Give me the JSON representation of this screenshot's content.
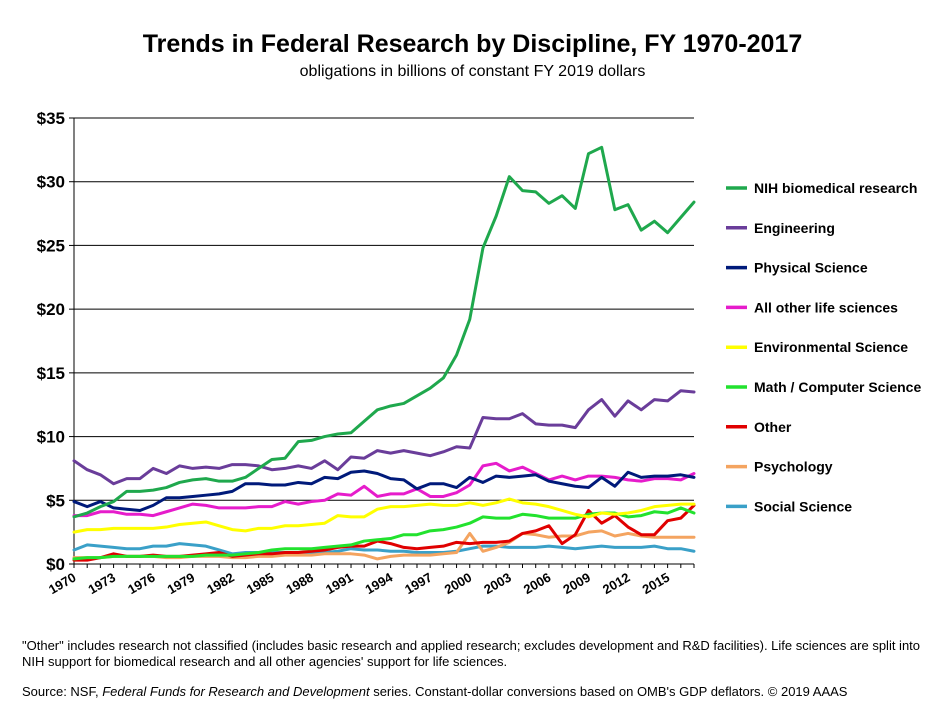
{
  "title": "Trends in Federal Research by Discipline, FY 1970-2017",
  "subtitle": "obligations in billions of constant FY 2019 dollars",
  "note": "\"Other\" includes research not classified (includes basic research and applied research; excludes development and R&D facilities). Life sciences are split into NIH  support for biomedical research and all other agencies' support for life sciences.",
  "source": {
    "prefix": "Source: NSF, ",
    "italic": "Federal Funds for Research and Development",
    "suffix": " series. Constant-dollar conversions based on OMB's GDP deflators. © 2019 AAAS"
  },
  "chart_data": {
    "type": "line",
    "title": "Trends in Federal Research by Discipline, FY 1970-2017",
    "subtitle": "obligations in billions of constant FY 2019 dollars",
    "xlabel": "",
    "ylabel": "",
    "xlim": [
      1970,
      2017
    ],
    "ylim": [
      0,
      35
    ],
    "y_ticks": [
      0,
      5,
      10,
      15,
      20,
      25,
      30,
      35
    ],
    "y_tick_labels": [
      "$0",
      "$5",
      "$10",
      "$15",
      "$20",
      "$25",
      "$30",
      "$35"
    ],
    "x_ticks": [
      1970,
      1973,
      1976,
      1979,
      1982,
      1985,
      1988,
      1991,
      1994,
      1997,
      2000,
      2003,
      2006,
      2009,
      2012,
      2015
    ],
    "x_tick_labels": [
      "1970",
      "1973",
      "1976",
      "1979",
      "1982",
      "1985",
      "1988",
      "1991",
      "1994",
      "1997",
      "2000",
      "2003",
      "2006",
      "2009",
      "2012",
      "2015"
    ],
    "grid": "horizontal",
    "legend_position": "right",
    "x": [
      1970,
      1971,
      1972,
      1973,
      1974,
      1975,
      1976,
      1977,
      1978,
      1979,
      1980,
      1981,
      1982,
      1983,
      1984,
      1985,
      1986,
      1987,
      1988,
      1989,
      1990,
      1991,
      1992,
      1993,
      1994,
      1995,
      1996,
      1997,
      1998,
      1999,
      2000,
      2001,
      2002,
      2003,
      2004,
      2005,
      2006,
      2007,
      2008,
      2009,
      2010,
      2011,
      2012,
      2013,
      2014,
      2015,
      2016,
      2017
    ],
    "series": [
      {
        "name": "NIH biomedical research",
        "color": "#1fa84d",
        "values": [
          3.7,
          4.0,
          4.5,
          4.9,
          5.7,
          5.7,
          5.8,
          6.0,
          6.4,
          6.6,
          6.7,
          6.5,
          6.5,
          6.8,
          7.5,
          8.2,
          8.3,
          9.6,
          9.7,
          10.0,
          10.2,
          10.3,
          11.2,
          12.1,
          12.4,
          12.6,
          13.2,
          13.8,
          14.6,
          16.4,
          19.2,
          24.8,
          27.3,
          30.4,
          29.3,
          29.2,
          28.3,
          28.9,
          27.9,
          32.2,
          32.7,
          27.8,
          28.2,
          26.2,
          26.9,
          26.0,
          27.2,
          28.4
        ]
      },
      {
        "name": "Engineering",
        "color": "#6a3d9a",
        "values": [
          8.1,
          7.4,
          7.0,
          6.3,
          6.7,
          6.7,
          7.5,
          7.1,
          7.7,
          7.5,
          7.6,
          7.5,
          7.8,
          7.8,
          7.7,
          7.4,
          7.5,
          7.7,
          7.5,
          8.1,
          7.4,
          8.4,
          8.3,
          8.9,
          8.7,
          8.9,
          8.7,
          8.5,
          8.8,
          9.2,
          9.1,
          11.5,
          11.4,
          11.4,
          11.8,
          11.0,
          10.9,
          10.9,
          10.7,
          12.1,
          12.9,
          11.6,
          12.8,
          12.1,
          12.9,
          12.8,
          13.6,
          13.5
        ]
      },
      {
        "name": "Physical Science",
        "color": "#001a7a",
        "values": [
          4.9,
          4.5,
          4.9,
          4.4,
          4.3,
          4.2,
          4.6,
          5.2,
          5.2,
          5.3,
          5.4,
          5.5,
          5.7,
          6.3,
          6.3,
          6.2,
          6.2,
          6.4,
          6.3,
          6.8,
          6.7,
          7.2,
          7.3,
          7.1,
          6.7,
          6.6,
          5.9,
          6.3,
          6.3,
          6.0,
          6.8,
          6.4,
          6.9,
          6.8,
          6.9,
          7.0,
          6.5,
          6.3,
          6.1,
          6.0,
          6.8,
          6.1,
          7.2,
          6.8,
          6.9,
          6.9,
          7.0,
          6.8
        ]
      },
      {
        "name": "All other life sciences",
        "color": "#e61ccb",
        "values": [
          3.8,
          3.8,
          4.1,
          4.1,
          3.9,
          3.9,
          3.8,
          4.1,
          4.4,
          4.7,
          4.6,
          4.4,
          4.4,
          4.4,
          4.5,
          4.5,
          4.9,
          4.7,
          4.9,
          5.0,
          5.5,
          5.4,
          6.1,
          5.3,
          5.5,
          5.5,
          5.9,
          5.3,
          5.3,
          5.6,
          6.2,
          7.7,
          7.9,
          7.3,
          7.6,
          7.1,
          6.6,
          6.9,
          6.6,
          6.9,
          6.9,
          6.8,
          6.6,
          6.5,
          6.7,
          6.7,
          6.6,
          7.1
        ]
      },
      {
        "name": "Environmental Science",
        "color": "#ffff00",
        "values": [
          2.5,
          2.7,
          2.7,
          2.8,
          2.8,
          2.8,
          2.8,
          2.9,
          3.1,
          3.2,
          3.3,
          3.0,
          2.7,
          2.6,
          2.8,
          2.8,
          3.0,
          3.0,
          3.1,
          3.2,
          3.8,
          3.7,
          3.7,
          4.3,
          4.5,
          4.5,
          4.6,
          4.7,
          4.6,
          4.6,
          4.8,
          4.6,
          4.8,
          5.1,
          4.8,
          4.7,
          4.5,
          4.2,
          3.9,
          3.7,
          4.0,
          3.9,
          4.0,
          4.2,
          4.5,
          4.6,
          4.7,
          4.7
        ]
      },
      {
        "name": "Math / Computer Science",
        "color": "#22e22e",
        "values": [
          0.4,
          0.5,
          0.5,
          0.6,
          0.6,
          0.6,
          0.6,
          0.6,
          0.6,
          0.6,
          0.7,
          0.7,
          0.7,
          0.8,
          0.9,
          1.1,
          1.2,
          1.2,
          1.2,
          1.3,
          1.4,
          1.5,
          1.8,
          1.9,
          2.0,
          2.3,
          2.3,
          2.6,
          2.7,
          2.9,
          3.2,
          3.7,
          3.6,
          3.6,
          3.9,
          3.8,
          3.6,
          3.6,
          3.6,
          3.9,
          4.0,
          4.0,
          3.7,
          3.8,
          4.1,
          4.0,
          4.4,
          4.0
        ]
      },
      {
        "name": "Other",
        "color": "#e00000",
        "values": [
          0.3,
          0.3,
          0.5,
          0.8,
          0.6,
          0.6,
          0.7,
          0.6,
          0.6,
          0.7,
          0.8,
          0.9,
          0.6,
          0.7,
          0.8,
          0.8,
          0.9,
          0.9,
          1.0,
          1.1,
          1.3,
          1.4,
          1.4,
          1.8,
          1.6,
          1.3,
          1.2,
          1.3,
          1.4,
          1.7,
          1.6,
          1.7,
          1.7,
          1.8,
          2.4,
          2.6,
          3.0,
          1.6,
          2.3,
          4.2,
          3.2,
          3.8,
          2.9,
          2.3,
          2.3,
          3.4,
          3.6,
          4.6
        ]
      },
      {
        "name": "Psychology",
        "color": "#f4a460",
        "values": [
          0.5,
          0.5,
          0.5,
          0.6,
          0.6,
          0.6,
          0.6,
          0.5,
          0.5,
          0.6,
          0.6,
          0.6,
          0.5,
          0.5,
          0.6,
          0.6,
          0.7,
          0.7,
          0.7,
          0.8,
          0.8,
          0.8,
          0.7,
          0.4,
          0.6,
          0.7,
          0.7,
          0.7,
          0.8,
          0.9,
          2.4,
          1.0,
          1.3,
          1.7,
          2.4,
          2.3,
          2.1,
          2.2,
          2.2,
          2.5,
          2.6,
          2.2,
          2.4,
          2.2,
          2.1,
          2.1,
          2.1,
          2.1
        ]
      },
      {
        "name": "Social Science",
        "color": "#3aa0c8",
        "values": [
          1.1,
          1.5,
          1.4,
          1.3,
          1.2,
          1.2,
          1.4,
          1.4,
          1.6,
          1.5,
          1.4,
          1.1,
          0.8,
          0.9,
          0.9,
          0.9,
          0.9,
          0.8,
          0.9,
          0.9,
          1.0,
          1.2,
          1.1,
          1.1,
          1.0,
          1.0,
          0.9,
          0.9,
          0.9,
          1.0,
          1.2,
          1.4,
          1.4,
          1.3,
          1.3,
          1.3,
          1.4,
          1.3,
          1.2,
          1.3,
          1.4,
          1.3,
          1.3,
          1.3,
          1.4,
          1.2,
          1.2,
          1.0
        ]
      }
    ]
  }
}
